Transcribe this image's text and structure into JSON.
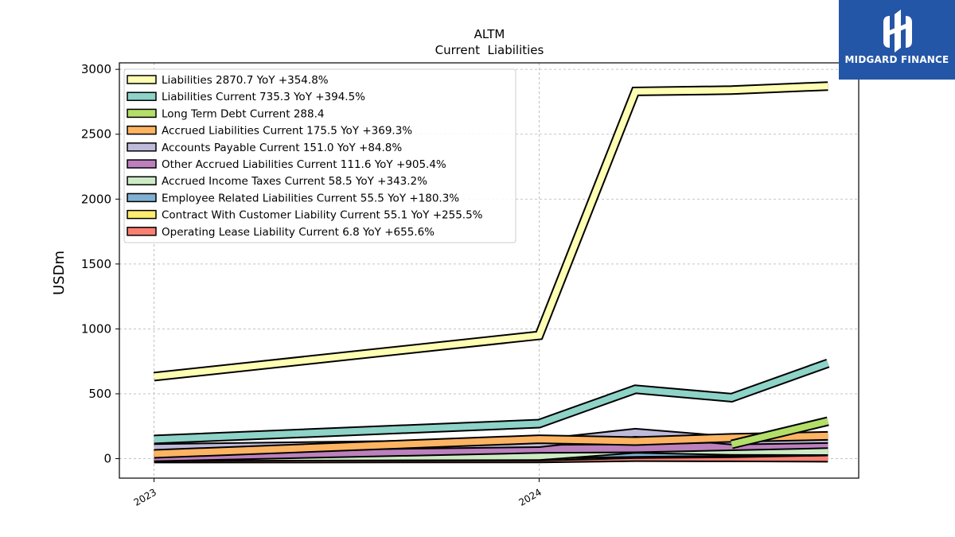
{
  "brand": {
    "name": "MIDGARD FINANCE",
    "bg_color": "#2456a8"
  },
  "chart_data": {
    "type": "line",
    "title": "ALTM",
    "subtitle": "Current  Liabilities",
    "ylabel": "USDm",
    "xlabel": "",
    "ylim": [
      -150,
      3050
    ],
    "yticks": [
      0,
      500,
      1000,
      1500,
      2000,
      2500,
      3000
    ],
    "xticks": [
      {
        "label": "2023",
        "x": 2023.0
      },
      {
        "label": "2024",
        "x": 2024.0
      }
    ],
    "x": [
      2023.0,
      2024.0,
      2024.25,
      2024.5,
      2024.75
    ],
    "grid": true,
    "legend_position": "top-left",
    "series": [
      {
        "name": "Liabilities",
        "legend": "Liabilities  2870.7 YoY +354.8%",
        "color": "#ffffb3",
        "values": [
          632,
          950,
          2830,
          2840,
          2870.7
        ]
      },
      {
        "name": "Liabilities Current",
        "legend": "Liabilities Current  735.3 YoY +394.5%",
        "color": "#8dd3c7",
        "values": [
          148,
          270,
          535,
          470,
          735.3
        ]
      },
      {
        "name": "Long Term Debt Current",
        "legend": "Long Term Debt Current  288.4",
        "color": "#b3de69",
        "values": [
          null,
          null,
          null,
          110,
          288.4
        ]
      },
      {
        "name": "Accrued Liabilities Current",
        "legend": "Accrued Liabilities Current  175.5 YoY +369.3%",
        "color": "#fdb462",
        "values": [
          37,
          150,
          135,
          160,
          175.5
        ]
      },
      {
        "name": "Accounts Payable Current",
        "legend": "Accounts Payable Current  151.0 YoY +84.8%",
        "color": "#bebada",
        "values": [
          82,
          120,
          200,
          140,
          151.0
        ]
      },
      {
        "name": "Other Accrued Liabilities Current",
        "legend": "Other Accrued Liabilities Current  111.6 YoY +905.4%",
        "color": "#bc80bd",
        "values": [
          11,
          75,
          80,
          95,
          111.6
        ]
      },
      {
        "name": "Accrued Income Taxes Current",
        "legend": "Accrued Income Taxes Current  58.5 YoY +343.2%",
        "color": "#ccebc5",
        "values": [
          13,
          20,
          75,
          60,
          58.5
        ]
      },
      {
        "name": "Employee Related Liabilities Current",
        "legend": "Employee Related Liabilities Current  55.5 YoY +180.3%",
        "color": "#80b1d3",
        "values": [
          20,
          30,
          45,
          52,
          55.5
        ]
      },
      {
        "name": "Contract With Customer Liability Current",
        "legend": "Contract With Customer Liability Current  55.1 YoY +255.5%",
        "color": "#ffed6f",
        "values": [
          15,
          16,
          35,
          42,
          55.1
        ]
      },
      {
        "name": "Operating Lease Liability Current",
        "legend": "Operating Lease Liability Current  6.8 YoY +655.6%",
        "color": "#fb8072",
        "values": [
          1,
          2,
          12,
          10,
          6.8
        ]
      }
    ]
  }
}
